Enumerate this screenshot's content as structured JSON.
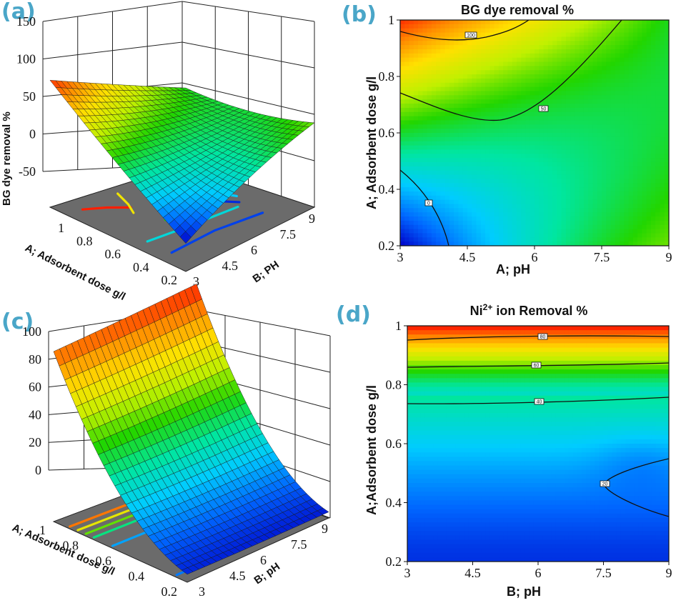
{
  "panels": {
    "a": {
      "letter": "(a)"
    },
    "b": {
      "letter": "(b)"
    },
    "c": {
      "letter": "(c)"
    },
    "d": {
      "letter": "(d)"
    }
  },
  "colormap": [
    "#0000c8",
    "#0066ff",
    "#00ccff",
    "#00e6a0",
    "#22d600",
    "#c0f000",
    "#ffe000",
    "#ff8c00",
    "#ff1e00"
  ],
  "chart_data": [
    {
      "id": "a",
      "type": "surface3d",
      "title": "",
      "zlabel": "BG dye removal %",
      "xlabel": "A; Adsorbent dose g/l",
      "ylabel": "B; PH",
      "zticks": [
        "150",
        "100",
        "50",
        "0",
        "-50"
      ],
      "xticks": [
        "1",
        "0.8",
        "0.6",
        "0.4",
        "0.2"
      ],
      "yticks": [
        "3",
        "4.5",
        "6",
        "7.5",
        "9"
      ],
      "xlim": [
        0.2,
        1
      ],
      "ylim": [
        3,
        9
      ],
      "zlim": [
        -50,
        150
      ],
      "surface": {
        "dose": [
          1,
          0.6,
          0.2
        ],
        "pH": [
          3,
          6,
          9
        ],
        "z": [
          [
            108,
            75,
            45
          ],
          [
            40,
            8,
            35
          ],
          [
            -15,
            35,
            55
          ]
        ]
      }
    },
    {
      "id": "b",
      "type": "contour",
      "title": "BG dye removal %",
      "xlabel": "A; pH",
      "ylabel": "A; Adsorbent dose g/l",
      "xticks": [
        "3",
        "4.5",
        "6",
        "7.5",
        "9"
      ],
      "yticks": [
        "1",
        "0.8",
        "0.6",
        "0.4",
        "0.2"
      ],
      "xlim": [
        3,
        9
      ],
      "ylim": [
        0.2,
        1
      ],
      "contour_levels": [
        {
          "level": 100,
          "label": "100"
        },
        {
          "level": 50,
          "label": "50"
        },
        {
          "level": 0,
          "label": "0"
        }
      ]
    },
    {
      "id": "c",
      "type": "surface3d",
      "title": "",
      "zlabel": "",
      "xlabel": "A; Adsorbent dose g/l",
      "ylabel": "B; pH",
      "zticks": [
        "100",
        "80",
        "60",
        "40",
        "20",
        "0"
      ],
      "xticks": [
        "1",
        "0.8",
        "0.6",
        "0.4",
        "0.2"
      ],
      "yticks": [
        "3",
        "4.5",
        "6",
        "7.5",
        "9"
      ],
      "xlim": [
        0.2,
        1
      ],
      "ylim": [
        3,
        9
      ],
      "zlim": [
        0,
        100
      ],
      "surface": {
        "dose": [
          1,
          0.6,
          0.2
        ],
        "pH": [
          3,
          6,
          9
        ],
        "z": [
          [
            85,
            88,
            92
          ],
          [
            12,
            10,
            12
          ],
          [
            4,
            3,
            3
          ]
        ]
      }
    },
    {
      "id": "d",
      "type": "contour",
      "title": "Ni²⁺ ion Removal %",
      "title_main": "Ni",
      "title_sup": "2+",
      "title_rest": " ion Removal %",
      "xlabel": "B; pH",
      "ylabel": "A;Adsorbent dose g/l",
      "xticks": [
        "3",
        "4.5",
        "6",
        "7.5",
        "9"
      ],
      "yticks": [
        "1",
        "0.8",
        "0.6",
        "0.4",
        "0.2"
      ],
      "xlim": [
        3,
        9
      ],
      "ylim": [
        0.2,
        1
      ],
      "contour_levels": [
        {
          "level": 80,
          "label": "80"
        },
        {
          "level": 60,
          "label": "60"
        },
        {
          "level": 40,
          "label": "40"
        },
        {
          "level": 20,
          "label": "20"
        }
      ]
    }
  ]
}
